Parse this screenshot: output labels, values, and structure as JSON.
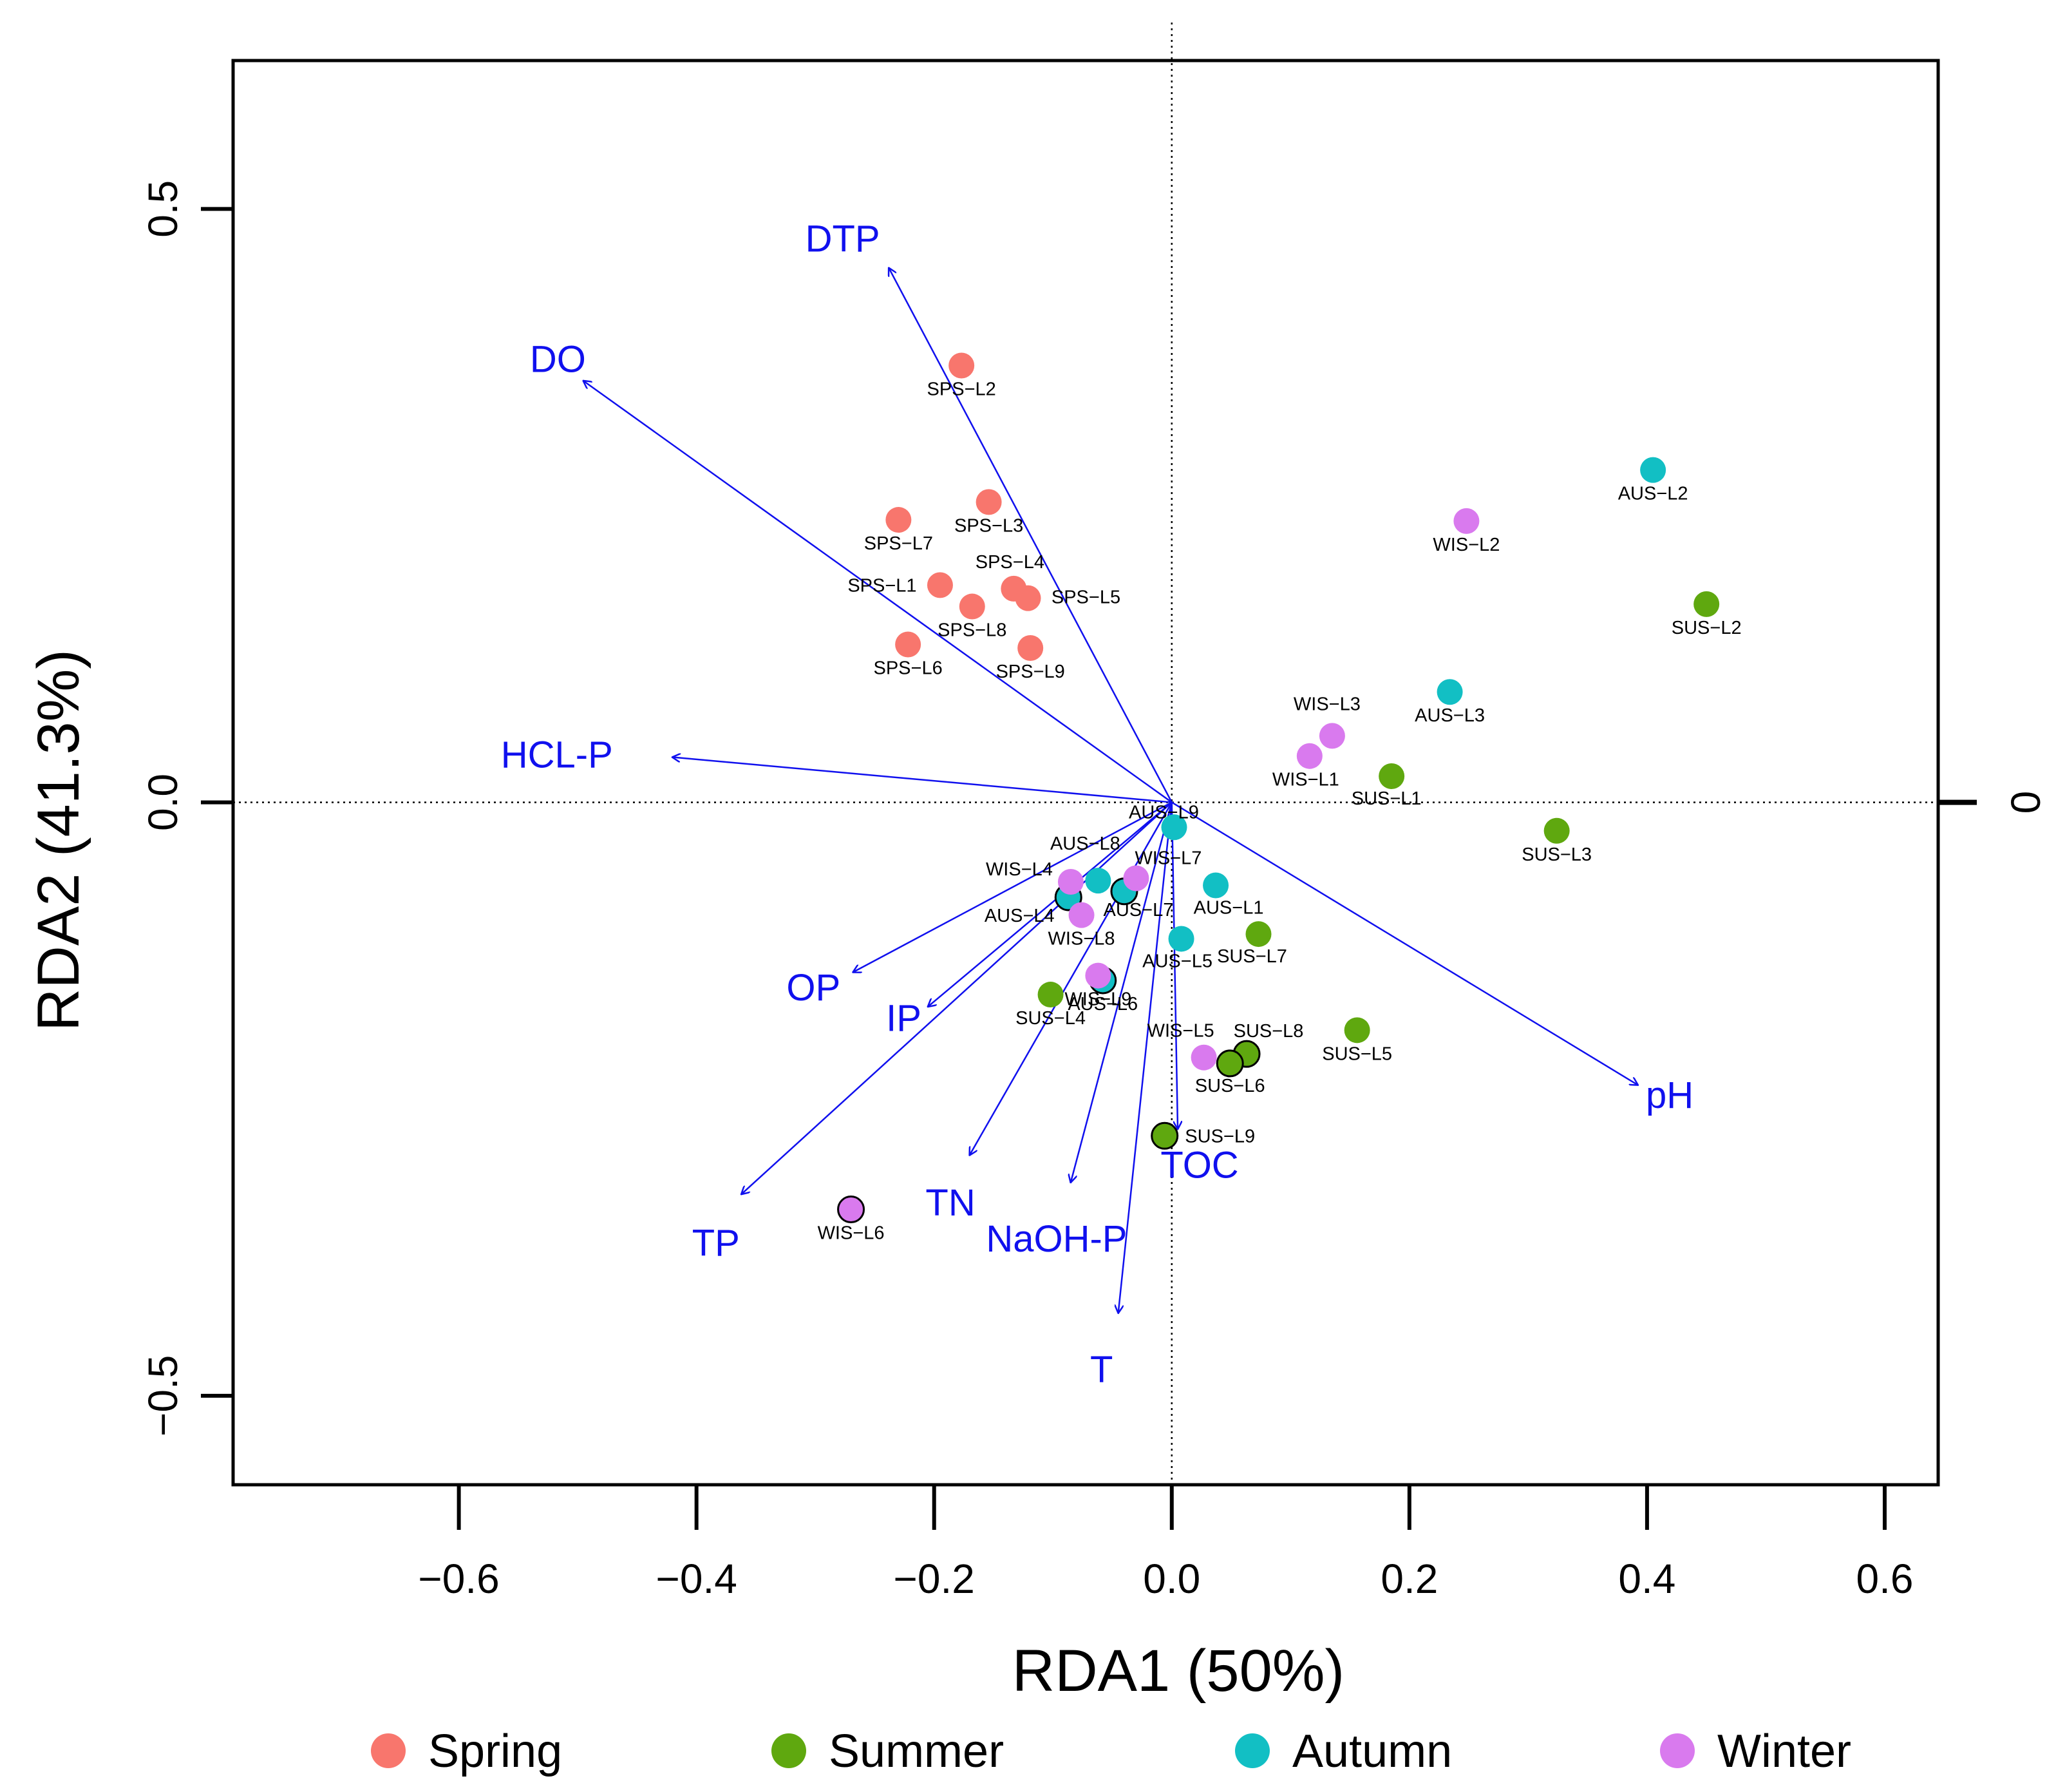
{
  "chart_data": {
    "type": "scatter",
    "title": "",
    "xlabel": "RDA1 (50%)",
    "ylabel": "RDA2 (41.3%)",
    "xlim": [
      -0.79,
      0.645
    ],
    "ylim": [
      -0.575,
      0.625
    ],
    "x_ticks": [
      {
        "value": -0.6,
        "label": "−0.6"
      },
      {
        "value": -0.4,
        "label": "−0.4"
      },
      {
        "value": -0.2,
        "label": "−0.2"
      },
      {
        "value": 0.0,
        "label": "0.0"
      },
      {
        "value": 0.2,
        "label": "0.2"
      },
      {
        "value": 0.4,
        "label": "0.4"
      },
      {
        "value": 0.6,
        "label": "0.6"
      }
    ],
    "y_ticks": [
      {
        "value": 0.5,
        "label": "0.5"
      },
      {
        "value": 0.0,
        "label": "0.0"
      },
      {
        "value": -0.5,
        "label": "−0.5"
      }
    ],
    "right_ticks": [
      {
        "value": 0.0,
        "label": "0"
      }
    ],
    "grid": false,
    "reference_lines": "dotted at x=0 and y=0",
    "legend": {
      "placement": "bottom",
      "entries": [
        {
          "name": "Spring",
          "color": "#f8766d"
        },
        {
          "name": "Summer",
          "color": "#5fa80f"
        },
        {
          "name": "Autumn",
          "color": "#12bfc4"
        },
        {
          "name": "Winter",
          "color": "#d97aee"
        }
      ]
    },
    "series": [
      {
        "name": "Spring",
        "color": "#f8766d",
        "points": [
          {
            "label": "SPS−L2",
            "x": -0.177,
            "y": 0.368
          },
          {
            "label": "SPS−L3",
            "x": -0.154,
            "y": 0.253
          },
          {
            "label": "SPS−L7",
            "x": -0.23,
            "y": 0.238
          },
          {
            "label": "SPS−L1",
            "x": -0.195,
            "y": 0.183
          },
          {
            "label": "SPS−L4",
            "x": -0.133,
            "y": 0.18
          },
          {
            "label": "SPS−L5",
            "x": -0.121,
            "y": 0.172
          },
          {
            "label": "SPS−L8",
            "x": -0.168,
            "y": 0.165
          },
          {
            "label": "SPS−L6",
            "x": -0.222,
            "y": 0.133
          },
          {
            "label": "SPS−L9",
            "x": -0.119,
            "y": 0.13
          }
        ]
      },
      {
        "name": "Summer",
        "color": "#5fa80f",
        "points": [
          {
            "label": "SUS−L2",
            "x": 0.45,
            "y": 0.167
          },
          {
            "label": "SUS−L1",
            "x": 0.185,
            "y": 0.022
          },
          {
            "label": "SUS−L3",
            "x": 0.324,
            "y": -0.024
          },
          {
            "label": "SUS−L7",
            "x": 0.073,
            "y": -0.111
          },
          {
            "label": "SUS−L4",
            "x": -0.102,
            "y": -0.162
          },
          {
            "label": "SUS−L5",
            "x": 0.156,
            "y": -0.192
          },
          {
            "label": "SUS−L8",
            "x": 0.063,
            "y": -0.212
          },
          {
            "label": "SUS−L6",
            "x": 0.049,
            "y": -0.22
          },
          {
            "label": "SUS−L9",
            "x": -0.006,
            "y": -0.281
          }
        ]
      },
      {
        "name": "Autumn",
        "color": "#12bfc4",
        "points": [
          {
            "label": "AUS−L2",
            "x": 0.405,
            "y": 0.28
          },
          {
            "label": "AUS−L3",
            "x": 0.234,
            "y": 0.093
          },
          {
            "label": "AUS−L9",
            "x": 0.002,
            "y": -0.021
          },
          {
            "label": "AUS−L8",
            "x": -0.062,
            "y": -0.066
          },
          {
            "label": "AUS−L4",
            "x": -0.087,
            "y": -0.08
          },
          {
            "label": "AUS−L7",
            "x": -0.04,
            "y": -0.075
          },
          {
            "label": "AUS−L1",
            "x": 0.037,
            "y": -0.07
          },
          {
            "label": "AUS−L5",
            "x": 0.008,
            "y": -0.115
          },
          {
            "label": "AUS−L6",
            "x": -0.058,
            "y": -0.15
          }
        ]
      },
      {
        "name": "Winter",
        "color": "#d97aee",
        "points": [
          {
            "label": "WIS−L2",
            "x": 0.248,
            "y": 0.237
          },
          {
            "label": "WIS−L3",
            "x": 0.135,
            "y": 0.056
          },
          {
            "label": "WIS−L1",
            "x": 0.116,
            "y": 0.039
          },
          {
            "label": "WIS−L7",
            "x": -0.03,
            "y": -0.064
          },
          {
            "label": "WIS−L4",
            "x": -0.085,
            "y": -0.067
          },
          {
            "label": "WIS−L8",
            "x": -0.076,
            "y": -0.095
          },
          {
            "label": "WIS−L9",
            "x": -0.062,
            "y": -0.146
          },
          {
            "label": "WIS−L5",
            "x": 0.027,
            "y": -0.215
          },
          {
            "label": "WIS−L6",
            "x": -0.27,
            "y": -0.343
          }
        ]
      }
    ],
    "vectors": [
      {
        "label": "DTP",
        "x": -0.238,
        "y": 0.45
      },
      {
        "label": "DO",
        "x": -0.495,
        "y": 0.355
      },
      {
        "label": "HCL-P",
        "x": -0.42,
        "y": 0.038
      },
      {
        "label": "pH",
        "x": 0.392,
        "y": -0.238
      },
      {
        "label": "OP",
        "x": -0.268,
        "y": -0.143
      },
      {
        "label": "IP",
        "x": -0.205,
        "y": -0.172
      },
      {
        "label": "TP",
        "x": -0.362,
        "y": -0.33
      },
      {
        "label": "TN",
        "x": -0.17,
        "y": -0.297
      },
      {
        "label": "NaOH-P",
        "x": -0.085,
        "y": -0.32
      },
      {
        "label": "TOC",
        "x": 0.005,
        "y": -0.275
      },
      {
        "label": "T",
        "x": -0.045,
        "y": -0.43
      }
    ]
  }
}
